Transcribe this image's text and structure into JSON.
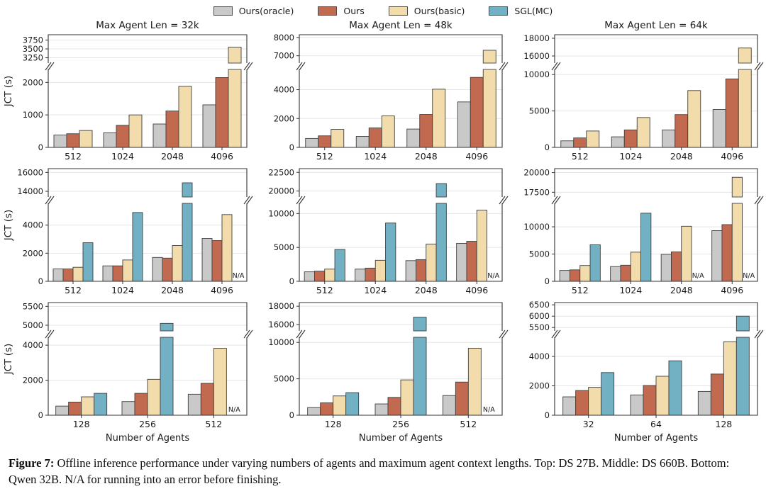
{
  "legend": {
    "items": [
      {
        "label": "Ours(oracle)",
        "color": "#c9c9c9"
      },
      {
        "label": "Ours",
        "color": "#c26a4f"
      },
      {
        "label": "Ours(basic)",
        "color": "#f2dcab"
      },
      {
        "label": "SGL(MC)",
        "color": "#72b0c4"
      }
    ]
  },
  "colors": {
    "bar_edge": "#3f3f3f",
    "grid": "#e5e5e5",
    "spine": "#333333",
    "na_text": "#72b0c4"
  },
  "caption": {
    "label": "Figure 7:",
    "text": " Offline inference performance under varying numbers of agents and maximum agent context lengths. Top: DS 27B. Middle: DS 660B. Bottom: Qwen 32B. N/A for running into an error before finishing."
  },
  "chart_data": [
    {
      "type": "bar",
      "row": 0,
      "col": 0,
      "title": "Max Agent Len = 32k",
      "ylabel": "JCT (s)",
      "xlabel": "",
      "categories": [
        "512",
        "1024",
        "2048",
        "4096"
      ],
      "series": [
        {
          "name": "Ours(oracle)",
          "values": [
            380,
            450,
            720,
            1310
          ]
        },
        {
          "name": "Ours",
          "values": [
            420,
            680,
            1120,
            2150
          ]
        },
        {
          "name": "Ours(basic)",
          "values": [
            520,
            1000,
            1880,
            3550
          ]
        }
      ],
      "axis": {
        "lower_ticks": [
          0,
          1000,
          2000
        ],
        "lower_max": 2400,
        "upper_ticks": [
          3250,
          3500,
          3750
        ],
        "upper_min": 3100,
        "upper_max": 3900
      }
    },
    {
      "type": "bar",
      "row": 0,
      "col": 1,
      "title": "Max Agent Len = 48k",
      "ylabel": "",
      "xlabel": "",
      "categories": [
        "512",
        "1024",
        "2048",
        "4096"
      ],
      "series": [
        {
          "name": "Ours(oracle)",
          "values": [
            620,
            760,
            1270,
            3150
          ]
        },
        {
          "name": "Ours",
          "values": [
            800,
            1350,
            2280,
            4850
          ]
        },
        {
          "name": "Ours(basic)",
          "values": [
            1250,
            2180,
            4030,
            7300
          ]
        }
      ],
      "axis": {
        "lower_ticks": [
          0,
          2000,
          4000
        ],
        "lower_max": 5400,
        "upper_ticks": [
          7000,
          8000
        ],
        "upper_min": 6600,
        "upper_max": 8150
      }
    },
    {
      "type": "bar",
      "row": 0,
      "col": 2,
      "title": "Max Agent Len = 64k",
      "ylabel": "",
      "xlabel": "",
      "categories": [
        "512",
        "1024",
        "2048",
        "4096"
      ],
      "series": [
        {
          "name": "Ours(oracle)",
          "values": [
            900,
            1450,
            2400,
            5200
          ]
        },
        {
          "name": "Ours",
          "values": [
            1300,
            2400,
            4500,
            9400
          ]
        },
        {
          "name": "Ours(basic)",
          "values": [
            2250,
            4100,
            7800,
            16900
          ]
        }
      ],
      "axis": {
        "lower_ticks": [
          0,
          5000,
          10000
        ],
        "lower_max": 10700,
        "upper_ticks": [
          16000,
          18000
        ],
        "upper_min": 15200,
        "upper_max": 18400
      }
    },
    {
      "type": "bar",
      "row": 1,
      "col": 0,
      "title": "",
      "ylabel": "JCT (s)",
      "xlabel": "",
      "categories": [
        "512",
        "1024",
        "2048",
        "4096"
      ],
      "series": [
        {
          "name": "Ours(oracle)",
          "values": [
            880,
            1100,
            1700,
            3050
          ]
        },
        {
          "name": "Ours",
          "values": [
            880,
            1100,
            1650,
            2900
          ]
        },
        {
          "name": "Ours(basic)",
          "values": [
            1000,
            1520,
            2550,
            4750
          ]
        },
        {
          "name": "SGL(MC)",
          "values": [
            2750,
            4900,
            14900,
            null
          ]
        }
      ],
      "axis": {
        "lower_ticks": [
          0,
          2000,
          4000
        ],
        "lower_max": 5550,
        "upper_ticks": [
          14000,
          16000
        ],
        "upper_min": 13400,
        "upper_max": 16400
      }
    },
    {
      "type": "bar",
      "row": 1,
      "col": 1,
      "title": "",
      "ylabel": "",
      "xlabel": "",
      "categories": [
        "512",
        "1024",
        "2048",
        "4096"
      ],
      "series": [
        {
          "name": "Ours(oracle)",
          "values": [
            1400,
            1800,
            3050,
            5600
          ]
        },
        {
          "name": "Ours",
          "values": [
            1500,
            1950,
            3200,
            5900
          ]
        },
        {
          "name": "Ours(basic)",
          "values": [
            1800,
            3100,
            5500,
            10500
          ]
        },
        {
          "name": "SGL(MC)",
          "values": [
            4700,
            8600,
            21000,
            null
          ]
        }
      ],
      "axis": {
        "lower_ticks": [
          0,
          5000,
          10000
        ],
        "lower_max": 11500,
        "upper_ticks": [
          20000,
          22500
        ],
        "upper_min": 19200,
        "upper_max": 23000
      }
    },
    {
      "type": "bar",
      "row": 1,
      "col": 2,
      "title": "",
      "ylabel": "",
      "xlabel": "",
      "categories": [
        "512",
        "1024",
        "2048",
        "4096"
      ],
      "series": [
        {
          "name": "Ours(oracle)",
          "values": [
            2000,
            2700,
            4950,
            9300
          ]
        },
        {
          "name": "Ours",
          "values": [
            2100,
            2950,
            5400,
            10400
          ]
        },
        {
          "name": "Ours(basic)",
          "values": [
            2900,
            5350,
            10100,
            19400
          ]
        },
        {
          "name": "SGL(MC)",
          "values": [
            6700,
            12500,
            null,
            null
          ]
        }
      ],
      "axis": {
        "lower_ticks": [
          0,
          5000,
          10000
        ],
        "lower_max": 14300,
        "upper_ticks": [
          17500,
          20000
        ],
        "upper_min": 16900,
        "upper_max": 20500
      }
    },
    {
      "type": "bar",
      "row": 2,
      "col": 0,
      "title": "",
      "ylabel": "JCT (s)",
      "xlabel": "Number of Agents",
      "categories": [
        "128",
        "256",
        "512"
      ],
      "series": [
        {
          "name": "Ours(oracle)",
          "values": [
            520,
            780,
            1200
          ]
        },
        {
          "name": "Ours",
          "values": [
            750,
            1250,
            1820
          ]
        },
        {
          "name": "Ours(basic)",
          "values": [
            1050,
            2050,
            3820
          ]
        },
        {
          "name": "SGL(MC)",
          "values": [
            1250,
            5050,
            null
          ]
        }
      ],
      "axis": {
        "lower_ticks": [
          0,
          2000,
          4000
        ],
        "lower_max": 4450,
        "upper_ticks": [
          5000,
          5500
        ],
        "upper_min": 4850,
        "upper_max": 5600
      }
    },
    {
      "type": "bar",
      "row": 2,
      "col": 1,
      "title": "",
      "ylabel": "",
      "xlabel": "Number of Agents",
      "categories": [
        "128",
        "256",
        "512"
      ],
      "series": [
        {
          "name": "Ours(oracle)",
          "values": [
            1050,
            1550,
            2700
          ]
        },
        {
          "name": "Ours",
          "values": [
            1700,
            2450,
            4550
          ]
        },
        {
          "name": "Ours(basic)",
          "values": [
            2650,
            4850,
            9200
          ]
        },
        {
          "name": "SGL(MC)",
          "values": [
            3100,
            16800,
            null
          ]
        }
      ],
      "axis": {
        "lower_ticks": [
          0,
          5000,
          10000
        ],
        "lower_max": 10700,
        "upper_ticks": [
          16000,
          18000
        ],
        "upper_min": 15300,
        "upper_max": 18400
      }
    },
    {
      "type": "bar",
      "row": 2,
      "col": 2,
      "title": "",
      "ylabel": "",
      "xlabel": "Number of Agents",
      "categories": [
        "32",
        "64",
        "128"
      ],
      "series": [
        {
          "name": "Ours(oracle)",
          "values": [
            1250,
            1380,
            1620
          ]
        },
        {
          "name": "Ours",
          "values": [
            1680,
            2020,
            2800
          ]
        },
        {
          "name": "Ours(basic)",
          "values": [
            1900,
            2650,
            5000
          ]
        },
        {
          "name": "SGL(MC)",
          "values": [
            2900,
            3700,
            6000
          ]
        }
      ],
      "axis": {
        "lower_ticks": [
          0,
          2000,
          4000
        ],
        "lower_max": 5300,
        "upper_ticks": [
          5500,
          6000,
          6500
        ],
        "upper_min": 5350,
        "upper_max": 6600
      }
    }
  ]
}
